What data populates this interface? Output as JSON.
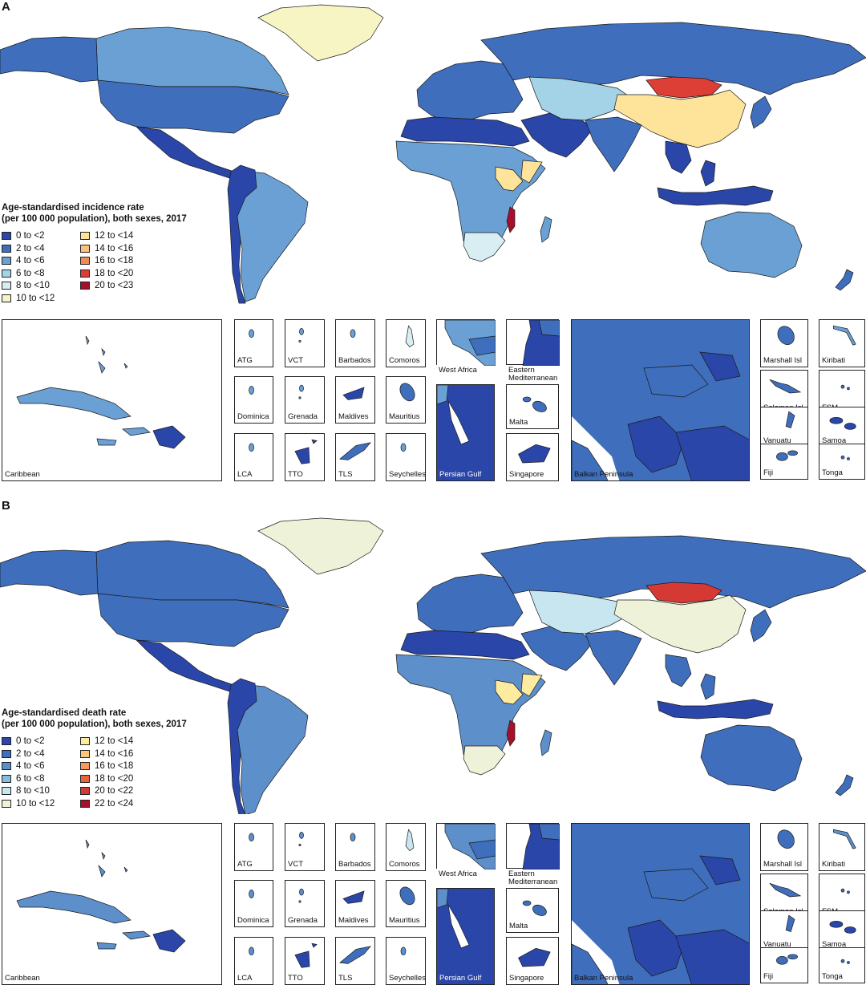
{
  "panels": [
    {
      "letter": "A",
      "legend_title_1": "Age-standardised incidence rate",
      "legend_title_2": "(per 100 000 population), both sexes, 2017",
      "legend": [
        {
          "label": "0 to <2",
          "color": "#2a46a8"
        },
        {
          "label": "2 to <4",
          "color": "#3f6fbc"
        },
        {
          "label": "4 to <6",
          "color": "#6aa0d4"
        },
        {
          "label": "6 to <8",
          "color": "#a4d3e8"
        },
        {
          "label": "8 to <10",
          "color": "#d9eef2"
        },
        {
          "label": "10 to <12",
          "color": "#f7f5c4"
        },
        {
          "label": "12 to <14",
          "color": "#fde49a"
        },
        {
          "label": "14 to <16",
          "color": "#fcc07a"
        },
        {
          "label": "16 to <18",
          "color": "#f18c56"
        },
        {
          "label": "18 to <20",
          "color": "#dd3f36"
        },
        {
          "label": "20 to <23",
          "color": "#a5102b"
        }
      ],
      "map_colors": {
        "north_america": "#3f6fbc",
        "canada": "#6aa0d4",
        "greenland": "#f7f5c4",
        "central_america": "#2a46a8",
        "south_america": "#6aa0d4",
        "andes": "#2a46a8",
        "europe": "#3f6fbc",
        "russia": "#3f6fbc",
        "north_africa": "#2a46a8",
        "africa": "#6aa0d4",
        "east_africa": "#fde49a",
        "southern_africa": "#d9eef2",
        "malawi": "#a5102b",
        "middle_east": "#2a46a8",
        "central_asia": "#a4d3e8",
        "mongolia": "#dd3f36",
        "china": "#fde49a",
        "india": "#3f6fbc",
        "southeast_asia": "#2a46a8",
        "indonesia": "#2a46a8",
        "australia": "#6aa0d4",
        "japan": "#3f6fbc",
        "madagascar": "#6aa0d4",
        "new_zealand": "#3f6fbc"
      },
      "insets": [
        {
          "label": "Caribbean",
          "color": "#6aa0d4",
          "accent": "#2a46a8"
        },
        {
          "label": "ATG",
          "color": "#6aa0d4"
        },
        {
          "label": "VCT",
          "color": "#6aa0d4"
        },
        {
          "label": "Barbados",
          "color": "#6aa0d4"
        },
        {
          "label": "Comoros",
          "color": "#d9eef2"
        },
        {
          "label": "West Africa",
          "color": "#6aa0d4",
          "accent": "#3f6fbc"
        },
        {
          "label": "Eastern Mediterranean",
          "color": "#2a46a8",
          "accent": "#3f6fbc"
        },
        {
          "label": "Balkan Peninsula",
          "color": "#3f6fbc",
          "accent": "#2a46a8"
        },
        {
          "label": "Marshall Isl",
          "color": "#3f6fbc"
        },
        {
          "label": "Kiribati",
          "color": "#6aa0d4"
        },
        {
          "label": "Dominica",
          "color": "#6aa0d4"
        },
        {
          "label": "Grenada",
          "color": "#6aa0d4"
        },
        {
          "label": "Maldives",
          "color": "#2a46a8"
        },
        {
          "label": "Mauritius",
          "color": "#3f6fbc"
        },
        {
          "label": "Persian Gulf",
          "color": "#2a46a8",
          "accent": "#6aa0d4"
        },
        {
          "label": "Malta",
          "color": "#3f6fbc"
        },
        {
          "label": "Solomon Isl",
          "color": "#3f6fbc"
        },
        {
          "label": "FSM",
          "color": "#3f6fbc"
        },
        {
          "label": "Vanuatu",
          "color": "#3f6fbc"
        },
        {
          "label": "Samoa",
          "color": "#2a46a8"
        },
        {
          "label": "LCA",
          "color": "#6aa0d4"
        },
        {
          "label": "TTO",
          "color": "#2a46a8"
        },
        {
          "label": "TLS",
          "color": "#3f6fbc"
        },
        {
          "label": "Seychelles",
          "color": "#6aa0d4"
        },
        {
          "label": "Singapore",
          "color": "#2a46a8"
        },
        {
          "label": "Fiji",
          "color": "#3f6fbc"
        },
        {
          "label": "Tonga",
          "color": "#3f6fbc"
        }
      ]
    },
    {
      "letter": "B",
      "legend_title_1": "Age-standardised death rate",
      "legend_title_2": "(per 100 000 population), both sexes, 2017",
      "legend": [
        {
          "label": "0 to <2",
          "color": "#2a46a8"
        },
        {
          "label": "2 to <4",
          "color": "#3f6fbc"
        },
        {
          "label": "4 to <6",
          "color": "#5d8fcb"
        },
        {
          "label": "6 to <8",
          "color": "#86bcdc"
        },
        {
          "label": "8 to <10",
          "color": "#c7e6ef"
        },
        {
          "label": "10 to <12",
          "color": "#eef2d8"
        },
        {
          "label": "12 to <14",
          "color": "#fdeb9f"
        },
        {
          "label": "14 to <16",
          "color": "#fcc67d"
        },
        {
          "label": "16 to <18",
          "color": "#f59a5c"
        },
        {
          "label": "18 to <20",
          "color": "#e8643f"
        },
        {
          "label": "20 to <22",
          "color": "#d43a33"
        },
        {
          "label": "22 to <24",
          "color": "#a5102b"
        }
      ],
      "map_colors": {
        "north_america": "#3f6fbc",
        "canada": "#3f6fbc",
        "greenland": "#eef2d8",
        "central_america": "#2a46a8",
        "south_america": "#5d8fcb",
        "andes": "#2a46a8",
        "europe": "#3f6fbc",
        "russia": "#3f6fbc",
        "north_africa": "#2a46a8",
        "africa": "#5d8fcb",
        "east_africa": "#fdeb9f",
        "southern_africa": "#eef2d8",
        "malawi": "#a5102b",
        "middle_east": "#3f6fbc",
        "central_asia": "#c7e6ef",
        "mongolia": "#d43a33",
        "china": "#eef2d8",
        "india": "#3f6fbc",
        "southeast_asia": "#3f6fbc",
        "indonesia": "#2a46a8",
        "australia": "#3f6fbc",
        "japan": "#3f6fbc",
        "madagascar": "#5d8fcb",
        "new_zealand": "#3f6fbc"
      },
      "insets": [
        {
          "label": "Caribbean",
          "color": "#5d8fcb",
          "accent": "#2a46a8"
        },
        {
          "label": "ATG",
          "color": "#5d8fcb"
        },
        {
          "label": "VCT",
          "color": "#5d8fcb"
        },
        {
          "label": "Barbados",
          "color": "#5d8fcb"
        },
        {
          "label": "Comoros",
          "color": "#c7e6ef"
        },
        {
          "label": "West Africa",
          "color": "#5d8fcb",
          "accent": "#3f6fbc"
        },
        {
          "label": "Eastern Mediterranean",
          "color": "#2a46a8",
          "accent": "#3f6fbc"
        },
        {
          "label": "Balkan Peninsula",
          "color": "#3f6fbc",
          "accent": "#2a46a8"
        },
        {
          "label": "Marshall Isl",
          "color": "#3f6fbc"
        },
        {
          "label": "Kiribati",
          "color": "#5d8fcb"
        },
        {
          "label": "Dominica",
          "color": "#5d8fcb"
        },
        {
          "label": "Grenada",
          "color": "#5d8fcb"
        },
        {
          "label": "Maldives",
          "color": "#2a46a8"
        },
        {
          "label": "Mauritius",
          "color": "#3f6fbc"
        },
        {
          "label": "Persian Gulf",
          "color": "#2a46a8",
          "accent": "#5d8fcb"
        },
        {
          "label": "Malta",
          "color": "#3f6fbc"
        },
        {
          "label": "Solomon Isl",
          "color": "#3f6fbc"
        },
        {
          "label": "FSM",
          "color": "#3f6fbc"
        },
        {
          "label": "Vanuatu",
          "color": "#3f6fbc"
        },
        {
          "label": "Samoa",
          "color": "#2a46a8"
        },
        {
          "label": "LCA",
          "color": "#5d8fcb"
        },
        {
          "label": "TTO",
          "color": "#2a46a8"
        },
        {
          "label": "TLS",
          "color": "#3f6fbc"
        },
        {
          "label": "Seychelles",
          "color": "#5d8fcb"
        },
        {
          "label": "Singapore",
          "color": "#2a46a8"
        },
        {
          "label": "Fiji",
          "color": "#3f6fbc"
        },
        {
          "label": "Tonga",
          "color": "#3f6fbc"
        }
      ]
    }
  ]
}
